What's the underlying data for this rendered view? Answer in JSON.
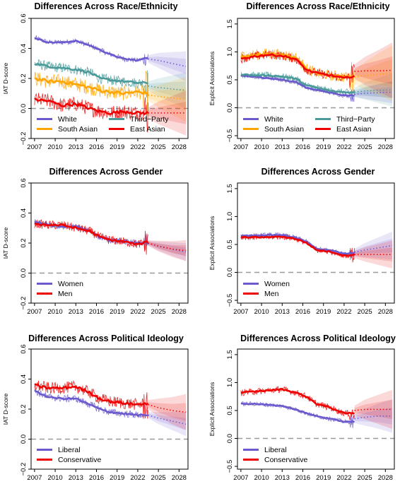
{
  "chart_data": [
    {
      "type": "line",
      "title": "Differences Across Race/Ethnicity",
      "ylabel": "IAT D-score",
      "xlim": [
        2006.5,
        2029.3
      ],
      "ylim": [
        -0.2,
        0.6
      ],
      "xticks": [
        2007,
        2010,
        2013,
        2016,
        2019,
        2022,
        2025,
        2028
      ],
      "yticks": [
        -0.2,
        0,
        0.2,
        0.4,
        0.6
      ],
      "yticklabels": [
        "−0.2",
        "0.0",
        "0.2",
        "0.4",
        "0.6"
      ],
      "zero_line": 0,
      "grid": false,
      "legend_position": "bottom-left",
      "legend_columns": 2,
      "series": [
        {
          "name": "White",
          "color": "#6a5acd",
          "noise": 0.018,
          "x": [
            2007,
            2009,
            2011,
            2013,
            2015,
            2016.5,
            2018,
            2020,
            2022,
            2023.5
          ],
          "values": [
            0.47,
            0.44,
            0.44,
            0.45,
            0.42,
            0.39,
            0.36,
            0.33,
            0.32,
            0.34
          ],
          "forecast_x": [
            2023.5,
            2025,
            2027,
            2029
          ],
          "forecast": [
            0.33,
            0.32,
            0.3,
            0.28
          ],
          "band": 0.1
        },
        {
          "name": "Third−Party",
          "color": "#4a9a9a",
          "noise": 0.035,
          "x": [
            2007,
            2009,
            2011,
            2013,
            2015,
            2016.5,
            2018,
            2020,
            2022,
            2023.5
          ],
          "values": [
            0.3,
            0.28,
            0.27,
            0.26,
            0.24,
            0.2,
            0.19,
            0.18,
            0.17,
            0.17
          ],
          "forecast_x": [
            2023.5,
            2025,
            2027,
            2029
          ],
          "forecast": [
            0.15,
            0.14,
            0.13,
            0.12
          ],
          "band": 0.12
        },
        {
          "name": "South Asian",
          "color": "#ffa500",
          "noise": 0.05,
          "x": [
            2007,
            2009,
            2011,
            2013,
            2015,
            2016.5,
            2018,
            2020,
            2022,
            2023.5
          ],
          "values": [
            0.2,
            0.18,
            0.18,
            0.16,
            0.14,
            0.12,
            0.11,
            0.1,
            0.11,
            0.1
          ],
          "forecast_x": [
            2023.5,
            2025,
            2027,
            2029
          ],
          "forecast": [
            0.09,
            0.08,
            0.07,
            0.06
          ],
          "band": 0.15
        },
        {
          "name": "East Asian",
          "color": "#ee0000",
          "noise": 0.05,
          "x": [
            2007,
            2009,
            2011,
            2013,
            2015,
            2016.5,
            2018,
            2020,
            2022,
            2023.5
          ],
          "values": [
            0.06,
            0.05,
            0.02,
            0.03,
            0.0,
            -0.02,
            -0.03,
            -0.02,
            -0.03,
            -0.03
          ],
          "forecast_x": [
            2023.5,
            2025,
            2027,
            2029
          ],
          "forecast": [
            -0.03,
            -0.03,
            -0.03,
            -0.03
          ],
          "band": 0.15
        }
      ]
    },
    {
      "type": "line",
      "title": "Differences Across Race/Ethnicity",
      "ylabel": "Explicit Associations",
      "xlim": [
        2006.5,
        2029.3
      ],
      "ylim": [
        -0.55,
        1.6
      ],
      "xticks": [
        2007,
        2010,
        2013,
        2016,
        2019,
        2022,
        2025,
        2028
      ],
      "yticks": [
        -0.5,
        0,
        0.5,
        1,
        1.5
      ],
      "yticklabels": [
        "−0.5",
        "0.0",
        "0.5",
        "1.0",
        "1.5"
      ],
      "zero_line": 0,
      "grid": false,
      "legend_position": "bottom-left",
      "legend_columns": 2,
      "series": [
        {
          "name": "White",
          "color": "#6a5acd",
          "noise": 0.04,
          "x": [
            2007,
            2009,
            2011,
            2013,
            2015,
            2016.5,
            2018,
            2020,
            2022,
            2023.5
          ],
          "values": [
            0.58,
            0.55,
            0.53,
            0.5,
            0.46,
            0.36,
            0.32,
            0.27,
            0.22,
            0.22
          ],
          "forecast_x": [
            2023.5,
            2025,
            2027,
            2029
          ],
          "forecast": [
            0.24,
            0.26,
            0.27,
            0.28
          ],
          "band": 0.2
        },
        {
          "name": "Third−Party",
          "color": "#4a9a9a",
          "noise": 0.06,
          "x": [
            2007,
            2009,
            2011,
            2013,
            2015,
            2016.5,
            2018,
            2020,
            2022,
            2023.5
          ],
          "values": [
            0.6,
            0.58,
            0.58,
            0.56,
            0.52,
            0.4,
            0.36,
            0.3,
            0.28,
            0.27
          ],
          "forecast_x": [
            2023.5,
            2025,
            2027,
            2029
          ],
          "forecast": [
            0.28,
            0.3,
            0.31,
            0.32
          ],
          "band": 0.3
        },
        {
          "name": "South Asian",
          "color": "#ffa500",
          "noise": 0.1,
          "x": [
            2007,
            2009,
            2011,
            2013,
            2015,
            2016.5,
            2018,
            2020,
            2022,
            2023.5
          ],
          "values": [
            0.92,
            0.95,
            0.97,
            0.95,
            0.9,
            0.7,
            0.62,
            0.58,
            0.55,
            0.55
          ],
          "forecast_x": [
            2023.5,
            2025,
            2027,
            2029
          ],
          "forecast": [
            0.55,
            0.57,
            0.6,
            0.62
          ],
          "band": 0.5
        },
        {
          "name": "East Asian",
          "color": "#ee0000",
          "noise": 0.08,
          "x": [
            2007,
            2009,
            2011,
            2013,
            2015,
            2016.5,
            2018,
            2020,
            2022,
            2023.5
          ],
          "values": [
            0.88,
            0.92,
            0.95,
            0.93,
            0.87,
            0.68,
            0.62,
            0.58,
            0.53,
            0.57
          ],
          "forecast_x": [
            2023.5,
            2025,
            2027,
            2029
          ],
          "forecast": [
            0.65,
            0.66,
            0.66,
            0.67
          ],
          "band": 0.5
        }
      ]
    },
    {
      "type": "line",
      "title": "Differences Across Gender",
      "ylabel": "IAT D-score",
      "xlim": [
        2006.5,
        2029.3
      ],
      "ylim": [
        -0.2,
        0.6
      ],
      "xticks": [
        2007,
        2010,
        2013,
        2016,
        2019,
        2022,
        2025,
        2028
      ],
      "yticks": [
        -0.2,
        0,
        0.2,
        0.4,
        0.6
      ],
      "yticklabels": [
        "−0.2",
        "0.0",
        "0.2",
        "0.4",
        "0.6"
      ],
      "zero_line": 0,
      "grid": false,
      "legend_position": "bottom-left",
      "legend_columns": 1,
      "series": [
        {
          "name": "Women",
          "color": "#6a5acd",
          "noise": 0.02,
          "x": [
            2007,
            2009,
            2011,
            2013,
            2015,
            2016.5,
            2018,
            2020,
            2022,
            2023.5
          ],
          "values": [
            0.34,
            0.32,
            0.31,
            0.31,
            0.28,
            0.24,
            0.22,
            0.21,
            0.2,
            0.2
          ],
          "forecast_x": [
            2023.5,
            2025,
            2027,
            2029
          ],
          "forecast": [
            0.2,
            0.18,
            0.16,
            0.14
          ],
          "band": 0.06
        },
        {
          "name": "Men",
          "color": "#ee0000",
          "noise": 0.03,
          "x": [
            2007,
            2009,
            2011,
            2013,
            2015,
            2016.5,
            2018,
            2020,
            2022,
            2023.5
          ],
          "values": [
            0.33,
            0.32,
            0.32,
            0.3,
            0.28,
            0.24,
            0.22,
            0.21,
            0.19,
            0.21
          ],
          "forecast_x": [
            2023.5,
            2025,
            2027,
            2029
          ],
          "forecast": [
            0.2,
            0.18,
            0.16,
            0.15
          ],
          "band": 0.07
        }
      ]
    },
    {
      "type": "line",
      "title": "Differences Across Gender",
      "ylabel": "Explicit Associations",
      "xlim": [
        2006.5,
        2029.3
      ],
      "ylim": [
        -0.55,
        1.6
      ],
      "xticks": [
        2007,
        2010,
        2013,
        2016,
        2019,
        2022,
        2025,
        2028
      ],
      "yticks": [
        -0.5,
        0,
        0.5,
        1,
        1.5
      ],
      "yticklabels": [
        "−0.5",
        "0.0",
        "0.5",
        "1.0",
        "1.5"
      ],
      "zero_line": 0,
      "grid": false,
      "legend_position": "bottom-left",
      "legend_columns": 1,
      "series": [
        {
          "name": "Women",
          "color": "#6a5acd",
          "noise": 0.04,
          "x": [
            2007,
            2009,
            2011,
            2013,
            2015,
            2016.5,
            2018,
            2020,
            2022,
            2023.5
          ],
          "values": [
            0.66,
            0.66,
            0.67,
            0.67,
            0.62,
            0.55,
            0.42,
            0.4,
            0.33,
            0.35
          ],
          "forecast_x": [
            2023.5,
            2025,
            2027,
            2029
          ],
          "forecast": [
            0.36,
            0.4,
            0.44,
            0.48
          ],
          "band": 0.25
        },
        {
          "name": "Men",
          "color": "#ee0000",
          "noise": 0.05,
          "x": [
            2007,
            2009,
            2011,
            2013,
            2015,
            2016.5,
            2018,
            2020,
            2022,
            2023.5
          ],
          "values": [
            0.63,
            0.63,
            0.63,
            0.64,
            0.6,
            0.53,
            0.4,
            0.37,
            0.3,
            0.32
          ],
          "forecast_x": [
            2023.5,
            2025,
            2027,
            2029
          ],
          "forecast": [
            0.32,
            0.32,
            0.32,
            0.32
          ],
          "band": 0.25
        }
      ]
    },
    {
      "type": "line",
      "title": "Differences Across Political Ideology",
      "ylabel": "IAT D-score",
      "xlim": [
        2006.5,
        2029.3
      ],
      "ylim": [
        -0.2,
        0.6
      ],
      "xticks": [
        2007,
        2010,
        2013,
        2016,
        2019,
        2022,
        2025,
        2028
      ],
      "yticks": [
        -0.2,
        0,
        0.2,
        0.4,
        0.6
      ],
      "yticklabels": [
        "−0.2",
        "0.0",
        "0.2",
        "0.4",
        "0.6"
      ],
      "zero_line": 0,
      "grid": false,
      "legend_position": "bottom-left",
      "legend_columns": 1,
      "series": [
        {
          "name": "Liberal",
          "color": "#6a5acd",
          "noise": 0.025,
          "x": [
            2007,
            2009,
            2011,
            2013,
            2015,
            2016.5,
            2018,
            2020,
            2022,
            2023.5
          ],
          "values": [
            0.32,
            0.28,
            0.27,
            0.27,
            0.23,
            0.2,
            0.18,
            0.17,
            0.16,
            0.16
          ],
          "forecast_x": [
            2023.5,
            2025,
            2027,
            2029
          ],
          "forecast": [
            0.16,
            0.14,
            0.12,
            0.1
          ],
          "band": 0.08
        },
        {
          "name": "Conservative",
          "color": "#ee0000",
          "noise": 0.04,
          "x": [
            2007,
            2009,
            2011,
            2013,
            2015,
            2016.5,
            2018,
            2020,
            2022,
            2023.5
          ],
          "values": [
            0.36,
            0.34,
            0.34,
            0.35,
            0.31,
            0.27,
            0.25,
            0.24,
            0.23,
            0.24
          ],
          "forecast_x": [
            2023.5,
            2025,
            2027,
            2029
          ],
          "forecast": [
            0.23,
            0.21,
            0.19,
            0.18
          ],
          "band": 0.12
        }
      ]
    },
    {
      "type": "line",
      "title": "Differences Across Political Ideology",
      "ylabel": "Explicit Associations",
      "xlim": [
        2006.5,
        2029.3
      ],
      "ylim": [
        -0.55,
        1.6
      ],
      "xticks": [
        2007,
        2010,
        2013,
        2016,
        2019,
        2022,
        2025,
        2028
      ],
      "yticks": [
        -0.5,
        0,
        0.5,
        1,
        1.5
      ],
      "yticklabels": [
        "−0.5",
        "0.0",
        "0.5",
        "1.0",
        "1.5"
      ],
      "zero_line": 0,
      "grid": false,
      "legend_position": "bottom-left",
      "legend_columns": 1,
      "series": [
        {
          "name": "Liberal",
          "color": "#6a5acd",
          "noise": 0.04,
          "x": [
            2007,
            2009,
            2011,
            2013,
            2015,
            2016.5,
            2018,
            2020,
            2022,
            2023.5
          ],
          "values": [
            0.62,
            0.62,
            0.6,
            0.58,
            0.52,
            0.45,
            0.4,
            0.35,
            0.3,
            0.3
          ],
          "forecast_x": [
            2023.5,
            2025,
            2027,
            2029
          ],
          "forecast": [
            0.35,
            0.38,
            0.4,
            0.4
          ],
          "band": 0.3
        },
        {
          "name": "Conservative",
          "color": "#ee0000",
          "noise": 0.06,
          "x": [
            2007,
            2009,
            2011,
            2013,
            2015,
            2016.5,
            2018,
            2020,
            2022,
            2023.5
          ],
          "values": [
            0.82,
            0.84,
            0.86,
            0.88,
            0.82,
            0.75,
            0.62,
            0.55,
            0.45,
            0.45
          ],
          "forecast_x": [
            2023.5,
            2025,
            2027,
            2029
          ],
          "forecast": [
            0.5,
            0.52,
            0.52,
            0.52
          ],
          "band": 0.35
        }
      ]
    }
  ]
}
